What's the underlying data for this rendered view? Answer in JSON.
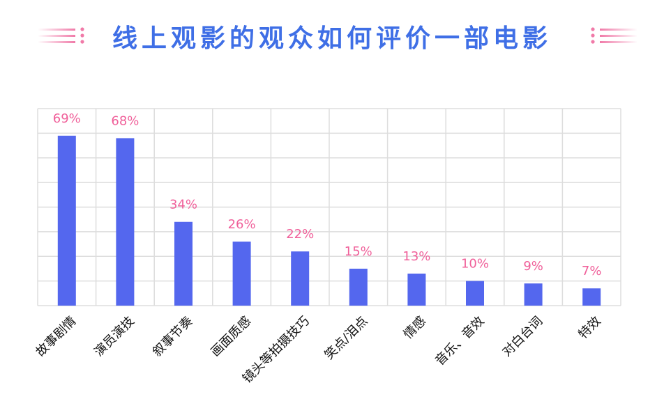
{
  "chart_data": {
    "type": "bar",
    "title": "线上观影的观众如何评价一部电影",
    "categories": [
      "故事剧情",
      "演员演技",
      "叙事节奏",
      "画面质感",
      "镜头等拍摄技巧",
      "笑点/泪点",
      "情感",
      "音乐、音效",
      "对白台词",
      "特效"
    ],
    "values": [
      69,
      68,
      34,
      26,
      22,
      15,
      13,
      10,
      9,
      7
    ],
    "value_labels": [
      "69%",
      "68%",
      "34%",
      "26%",
      "22%",
      "15%",
      "13%",
      "10%",
      "9%",
      "7%"
    ],
    "ylim": [
      0,
      80
    ],
    "grid": true,
    "xlabel": "",
    "ylabel": "",
    "colors": {
      "bar": "#5467ee",
      "label": "#f0609a",
      "title": "#3f6fe6",
      "grid": "#dddddd",
      "decoration": "#f07aa8"
    }
  }
}
